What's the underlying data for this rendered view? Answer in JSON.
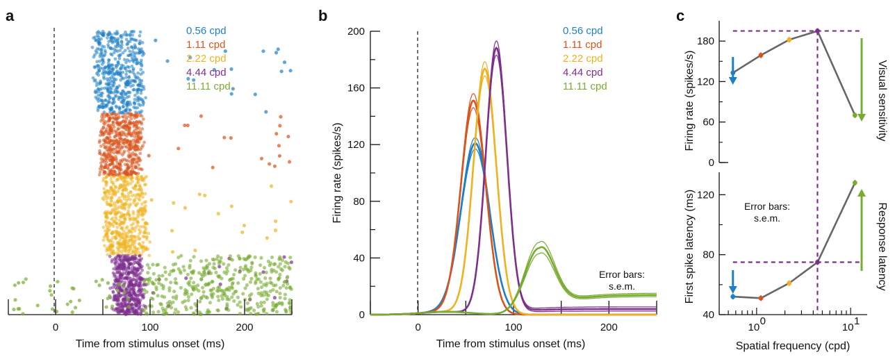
{
  "figure": {
    "panel_letters": [
      "a",
      "b",
      "c"
    ]
  },
  "colors": {
    "0.56": "#1f7fc4",
    "1.11": "#d9541b",
    "2.22": "#efb21f",
    "4.44": "#7e2f8e",
    "11.11": "#77ac30",
    "line": "#666666",
    "dashed": "#7e2f8e"
  },
  "chart_data": [
    {
      "id": "a",
      "type": "scatter",
      "title": "",
      "xlabel": "Time from stimulus onset (ms)",
      "ylabel": "",
      "xlim": [
        -50,
        250
      ],
      "xticks": [
        0,
        100,
        200
      ],
      "legend": [
        "0.56 cpd",
        "1.11 cpd",
        "2.22 cpd",
        "4.44 cpd",
        "11.11 cpd"
      ],
      "legend_position": "top-right",
      "onset_line_x": 0,
      "series": [
        {
          "name": "0.56 cpd",
          "core_range_ms": [
            42,
            92
          ]
        },
        {
          "name": "1.11 cpd",
          "core_range_ms": [
            48,
            90
          ]
        },
        {
          "name": "2.22 cpd",
          "core_range_ms": [
            52,
            95
          ]
        },
        {
          "name": "4.44 cpd",
          "core_range_ms": [
            62,
            92
          ]
        },
        {
          "name": "11.11 cpd",
          "core_range_ms": [
            95,
            250
          ]
        }
      ]
    },
    {
      "id": "b",
      "type": "line",
      "title": "",
      "xlabel": "Time from stimulus onset (ms)",
      "ylabel": "Firing rate (spikes/s)",
      "xlim": [
        -50,
        250
      ],
      "ylim": [
        0,
        200
      ],
      "xticks": [
        0,
        100,
        200
      ],
      "yticks": [
        0,
        40,
        80,
        120,
        160,
        200
      ],
      "legend": [
        "0.56 cpd",
        "1.11 cpd",
        "2.22 cpd",
        "4.44 cpd",
        "11.11 cpd"
      ],
      "legend_position": "top-right",
      "note": "Error bars:\ns.e.m.",
      "series": [
        {
          "name": "0.56 cpd",
          "peak_time_ms": 60,
          "peak_rate": 120,
          "width_ms": 15,
          "sem": 4,
          "tail": 0
        },
        {
          "name": "1.11 cpd",
          "peak_time_ms": 58,
          "peak_rate": 150,
          "width_ms": 13,
          "sem": 5,
          "tail": 0
        },
        {
          "name": "2.22 cpd",
          "peak_time_ms": 70,
          "peak_rate": 173,
          "width_ms": 12,
          "sem": 5,
          "tail": 0
        },
        {
          "name": "4.44 cpd",
          "peak_time_ms": 82,
          "peak_rate": 188,
          "width_ms": 11,
          "sem": 5,
          "tail": 4
        },
        {
          "name": "11.11 cpd",
          "peak_time_ms": 127,
          "peak_rate": 47,
          "width_ms": 15,
          "sem": 4,
          "tail": 14
        }
      ]
    },
    {
      "id": "c-top",
      "type": "line",
      "title": "",
      "xlabel": "",
      "ylabel": "Firing rate (spikes/s)",
      "right_label": "Visual sensitivity",
      "xscale": "log",
      "ylim": [
        0,
        210
      ],
      "yticks": [
        0,
        60,
        120,
        180
      ],
      "note": "Error bars:\ns.e.m.",
      "x": [
        0.56,
        1.11,
        2.22,
        4.44,
        11.11
      ],
      "values": [
        133,
        159,
        182,
        195,
        70
      ],
      "peak_ref_y": 195,
      "peak_ref_x": 4.44
    },
    {
      "id": "c-bottom",
      "type": "line",
      "title": "",
      "xlabel": "Spatial frequency (cpd)",
      "ylabel": "First spike latency (ms)",
      "right_label": "Response latency",
      "xscale": "log",
      "xlim": [
        0.4,
        15
      ],
      "xtick_labels": [
        "10",
        "0",
        "10",
        "1"
      ],
      "ylim": [
        40,
        135
      ],
      "yticks": [
        40,
        80,
        120
      ],
      "x": [
        0.56,
        1.11,
        2.22,
        4.44,
        11.11
      ],
      "values": [
        52,
        51,
        61,
        75,
        128
      ],
      "min_ref_y": 75
    }
  ]
}
